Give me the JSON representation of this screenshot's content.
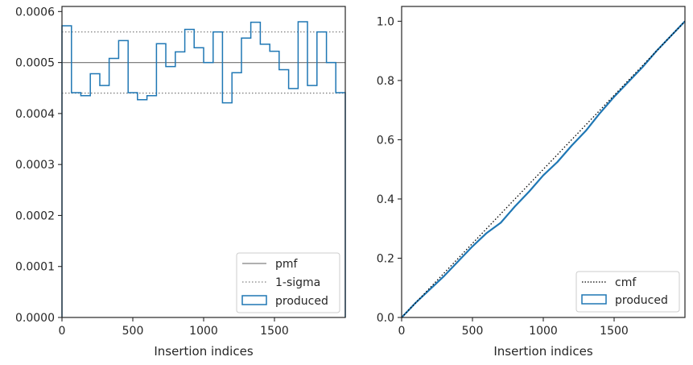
{
  "chart_data": [
    {
      "type": "step-histogram",
      "xlabel": "Insertion indices",
      "ylabel": "",
      "xlim": [
        0,
        2000
      ],
      "ylim": [
        0,
        0.00061
      ],
      "xticks": [
        0,
        500,
        1000,
        1500
      ],
      "xtick_labels": [
        "0",
        "500",
        "1000",
        "1500"
      ],
      "yticks": [
        0,
        0.0001,
        0.0002,
        0.0003,
        0.0004,
        0.0005,
        0.0006
      ],
      "ytick_labels": [
        "0.0000",
        "0.0001",
        "0.0002",
        "0.0003",
        "0.0004",
        "0.0005",
        "0.0006"
      ],
      "bin_edges": [
        0,
        67,
        133,
        200,
        267,
        333,
        400,
        467,
        533,
        600,
        667,
        733,
        800,
        867,
        933,
        1000,
        1067,
        1133,
        1200,
        1267,
        1333,
        1400,
        1467,
        1533,
        1600,
        1667,
        1733,
        1800,
        1867,
        1933,
        2000
      ],
      "produced": [
        0.000572,
        0.000441,
        0.000435,
        0.000478,
        0.000455,
        0.000508,
        0.000543,
        0.000441,
        0.000427,
        0.000435,
        0.000537,
        0.000492,
        0.000521,
        0.000565,
        0.000529,
        0.0005,
        0.00056,
        0.000421,
        0.00048,
        0.000548,
        0.000579,
        0.000536,
        0.000522,
        0.000486,
        0.000449,
        0.00058,
        0.000455,
        0.00056,
        0.0005,
        0.000441
      ],
      "pmf": 0.0005,
      "sigma_upper": 0.00056,
      "sigma_lower": 0.00044,
      "legend": {
        "position": "lower-right",
        "entries": [
          {
            "label": "pmf",
            "style": "solid",
            "color": "#808080"
          },
          {
            "label": "1-sigma",
            "style": "dotted",
            "color": "#808080"
          },
          {
            "label": "produced",
            "style": "patch",
            "color": "#1f77b4"
          }
        ]
      }
    },
    {
      "type": "line",
      "xlabel": "Insertion indices",
      "ylabel": "",
      "xlim": [
        0,
        2000
      ],
      "ylim": [
        0,
        1.05
      ],
      "xticks": [
        0,
        500,
        1000,
        1500
      ],
      "xtick_labels": [
        "0",
        "500",
        "1000",
        "1500"
      ],
      "yticks": [
        0,
        0.2,
        0.4,
        0.6,
        0.8,
        1.0
      ],
      "ytick_labels": [
        "0.0",
        "0.2",
        "0.4",
        "0.6",
        "0.8",
        "1.0"
      ],
      "cmf": {
        "x": [
          0,
          2000
        ],
        "y": [
          0,
          1.0
        ]
      },
      "produced": {
        "x": [
          0,
          100,
          200,
          300,
          400,
          500,
          600,
          700,
          800,
          900,
          1000,
          1100,
          1200,
          1300,
          1400,
          1500,
          1600,
          1700,
          1800,
          1900,
          2000
        ],
        "y": [
          0,
          0.05,
          0.095,
          0.14,
          0.19,
          0.24,
          0.285,
          0.32,
          0.375,
          0.425,
          0.48,
          0.525,
          0.58,
          0.63,
          0.69,
          0.745,
          0.795,
          0.845,
          0.9,
          0.95,
          1.0
        ]
      },
      "legend": {
        "position": "lower-right",
        "entries": [
          {
            "label": "cmf",
            "style": "dotted",
            "color": "#000000"
          },
          {
            "label": "produced",
            "style": "patch",
            "color": "#1f77b4"
          }
        ]
      }
    }
  ],
  "colors": {
    "produced": "#1f77b4",
    "reference": "#808080",
    "cmf": "#000000",
    "axes": "#262626"
  }
}
